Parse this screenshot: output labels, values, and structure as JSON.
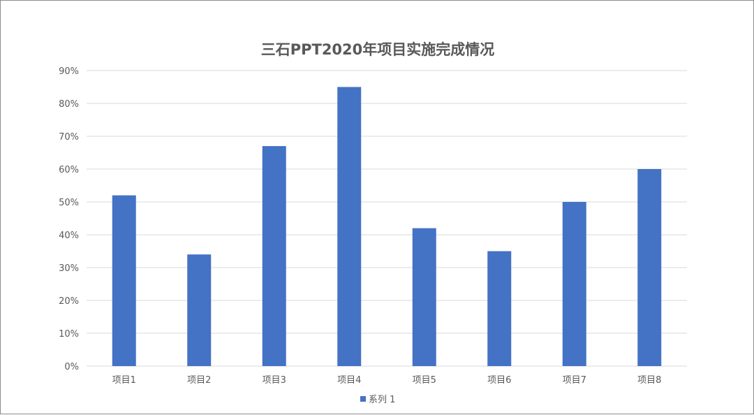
{
  "chart_data": {
    "type": "bar",
    "title": "三石PPT2020年项目实施完成情况",
    "categories": [
      "项目1",
      "项目2",
      "项目3",
      "项目4",
      "项目5",
      "项目6",
      "项目7",
      "项目8"
    ],
    "series": [
      {
        "name": "系列 1",
        "values": [
          0.52,
          0.34,
          0.67,
          0.85,
          0.42,
          0.35,
          0.5,
          0.6
        ]
      }
    ],
    "ylim": [
      0,
      0.9
    ],
    "yticks": [
      "0%",
      "10%",
      "20%",
      "30%",
      "40%",
      "50%",
      "60%",
      "70%",
      "80%",
      "90%"
    ],
    "grid": true,
    "legend_position": "bottom",
    "colors": {
      "bar": "#4472C4",
      "grid": "#D9D9D9",
      "text": "#595959"
    }
  }
}
